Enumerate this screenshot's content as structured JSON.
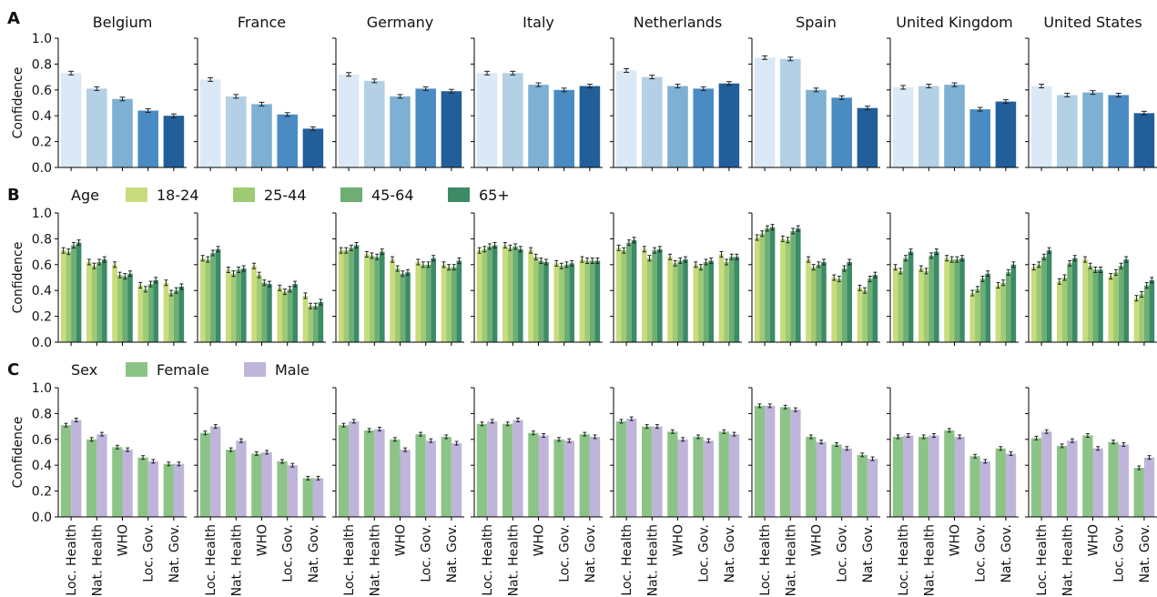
{
  "figure": {
    "row_letters": [
      "A",
      "B",
      "C"
    ],
    "legend_age": {
      "title": "Age",
      "labels": [
        "18-24",
        "25-44",
        "45-64",
        "65+"
      ]
    },
    "legend_sex": {
      "title": "Sex",
      "labels": [
        "Female",
        "Male"
      ]
    }
  },
  "colors": {
    "row_a": [
      "#dbe9f6",
      "#b3d0e5",
      "#7eb0d3",
      "#4a8bc3",
      "#225f9a"
    ],
    "age": [
      "#c8dc7e",
      "#9fca73",
      "#6cae74",
      "#3c8b66"
    ],
    "sex": [
      "#8cc487",
      "#bfb4d9"
    ]
  },
  "chart_data": [
    {
      "type": "bar",
      "panel": "A",
      "ylabel": "Confidence",
      "ylim": [
        0,
        1.0
      ],
      "yticks": [
        "0.0",
        "0.2",
        "0.4",
        "0.6",
        "0.8",
        "1.0"
      ],
      "countries": [
        "Belgium",
        "France",
        "Germany",
        "Italy",
        "Netherlands",
        "Spain",
        "United Kingdom",
        "United States"
      ],
      "categories": [
        "Loc. Health",
        "Nat. Health",
        "WHO",
        "Loc. Gov.",
        "Nat. Gov."
      ],
      "values": {
        "Belgium": [
          0.73,
          0.61,
          0.53,
          0.44,
          0.4
        ],
        "France": [
          0.68,
          0.55,
          0.49,
          0.41,
          0.3
        ],
        "Germany": [
          0.72,
          0.67,
          0.55,
          0.61,
          0.59
        ],
        "Italy": [
          0.73,
          0.73,
          0.64,
          0.6,
          0.63
        ],
        "Netherlands": [
          0.75,
          0.7,
          0.63,
          0.61,
          0.65
        ],
        "Spain": [
          0.85,
          0.84,
          0.6,
          0.54,
          0.46
        ],
        "United Kingdom": [
          0.62,
          0.63,
          0.64,
          0.45,
          0.51
        ],
        "United States": [
          0.63,
          0.56,
          0.58,
          0.56,
          0.42
        ]
      }
    },
    {
      "type": "bar",
      "panel": "B",
      "ylabel": "Confidence",
      "ylim": [
        0,
        1.0
      ],
      "yticks": [
        "0.0",
        "0.2",
        "0.4",
        "0.6",
        "0.8",
        "1.0"
      ],
      "series_names": [
        "18-24",
        "25-44",
        "45-64",
        "65+"
      ],
      "values": {
        "Belgium": [
          [
            0.71,
            0.7,
            0.75,
            0.77
          ],
          [
            0.62,
            0.59,
            0.62,
            0.64
          ],
          [
            0.6,
            0.52,
            0.51,
            0.53
          ],
          [
            0.44,
            0.41,
            0.45,
            0.48
          ],
          [
            0.46,
            0.38,
            0.4,
            0.43
          ]
        ],
        "France": [
          [
            0.65,
            0.64,
            0.69,
            0.72
          ],
          [
            0.56,
            0.53,
            0.56,
            0.57
          ],
          [
            0.59,
            0.52,
            0.46,
            0.45
          ],
          [
            0.42,
            0.39,
            0.41,
            0.45
          ],
          [
            0.36,
            0.28,
            0.28,
            0.31
          ]
        ],
        "Germany": [
          [
            0.71,
            0.71,
            0.73,
            0.75
          ],
          [
            0.68,
            0.67,
            0.66,
            0.7
          ],
          [
            0.64,
            0.57,
            0.53,
            0.54
          ],
          [
            0.62,
            0.6,
            0.6,
            0.65
          ],
          [
            0.6,
            0.58,
            0.58,
            0.63
          ]
        ],
        "Italy": [
          [
            0.71,
            0.72,
            0.74,
            0.75
          ],
          [
            0.75,
            0.73,
            0.74,
            0.72
          ],
          [
            0.71,
            0.66,
            0.63,
            0.62
          ],
          [
            0.61,
            0.59,
            0.6,
            0.61
          ],
          [
            0.64,
            0.63,
            0.63,
            0.63
          ]
        ],
        "Netherlands": [
          [
            0.73,
            0.71,
            0.77,
            0.79
          ],
          [
            0.72,
            0.65,
            0.71,
            0.72
          ],
          [
            0.66,
            0.61,
            0.63,
            0.64
          ],
          [
            0.6,
            0.58,
            0.62,
            0.63
          ],
          [
            0.68,
            0.62,
            0.66,
            0.66
          ]
        ],
        "Spain": [
          [
            0.81,
            0.84,
            0.88,
            0.89
          ],
          [
            0.8,
            0.79,
            0.86,
            0.88
          ],
          [
            0.64,
            0.58,
            0.6,
            0.62
          ],
          [
            0.5,
            0.49,
            0.57,
            0.62
          ],
          [
            0.42,
            0.4,
            0.49,
            0.52
          ]
        ],
        "United Kingdom": [
          [
            0.58,
            0.55,
            0.65,
            0.7
          ],
          [
            0.57,
            0.55,
            0.67,
            0.7
          ],
          [
            0.65,
            0.64,
            0.64,
            0.65
          ],
          [
            0.38,
            0.41,
            0.49,
            0.53
          ],
          [
            0.44,
            0.46,
            0.54,
            0.6
          ]
        ],
        "United States": [
          [
            0.58,
            0.6,
            0.66,
            0.71
          ],
          [
            0.47,
            0.5,
            0.61,
            0.65
          ],
          [
            0.64,
            0.59,
            0.56,
            0.56
          ],
          [
            0.51,
            0.54,
            0.59,
            0.64
          ],
          [
            0.34,
            0.37,
            0.44,
            0.48
          ]
        ]
      }
    },
    {
      "type": "bar",
      "panel": "C",
      "ylabel": "Confidence",
      "ylim": [
        0,
        1.0
      ],
      "yticks": [
        "0.0",
        "0.2",
        "0.4",
        "0.6",
        "0.8",
        "1.0"
      ],
      "series_names": [
        "Female",
        "Male"
      ],
      "values": {
        "Belgium": [
          [
            0.71,
            0.75
          ],
          [
            0.6,
            0.64
          ],
          [
            0.54,
            0.52
          ],
          [
            0.46,
            0.43
          ],
          [
            0.41,
            0.41
          ]
        ],
        "France": [
          [
            0.65,
            0.7
          ],
          [
            0.52,
            0.59
          ],
          [
            0.49,
            0.5
          ],
          [
            0.43,
            0.4
          ],
          [
            0.3,
            0.3
          ]
        ],
        "Germany": [
          [
            0.71,
            0.74
          ],
          [
            0.67,
            0.68
          ],
          [
            0.6,
            0.52
          ],
          [
            0.64,
            0.59
          ],
          [
            0.62,
            0.57
          ]
        ],
        "Italy": [
          [
            0.72,
            0.74
          ],
          [
            0.72,
            0.75
          ],
          [
            0.65,
            0.63
          ],
          [
            0.6,
            0.59
          ],
          [
            0.64,
            0.62
          ]
        ],
        "Netherlands": [
          [
            0.74,
            0.76
          ],
          [
            0.7,
            0.7
          ],
          [
            0.66,
            0.6
          ],
          [
            0.62,
            0.59
          ],
          [
            0.66,
            0.64
          ]
        ],
        "Spain": [
          [
            0.86,
            0.86
          ],
          [
            0.85,
            0.83
          ],
          [
            0.62,
            0.58
          ],
          [
            0.56,
            0.53
          ],
          [
            0.48,
            0.45
          ]
        ],
        "United Kingdom": [
          [
            0.62,
            0.63
          ],
          [
            0.62,
            0.63
          ],
          [
            0.67,
            0.62
          ],
          [
            0.47,
            0.43
          ],
          [
            0.53,
            0.49
          ]
        ],
        "United States": [
          [
            0.61,
            0.66
          ],
          [
            0.55,
            0.59
          ],
          [
            0.63,
            0.53
          ],
          [
            0.58,
            0.56
          ],
          [
            0.38,
            0.46
          ]
        ]
      }
    }
  ]
}
